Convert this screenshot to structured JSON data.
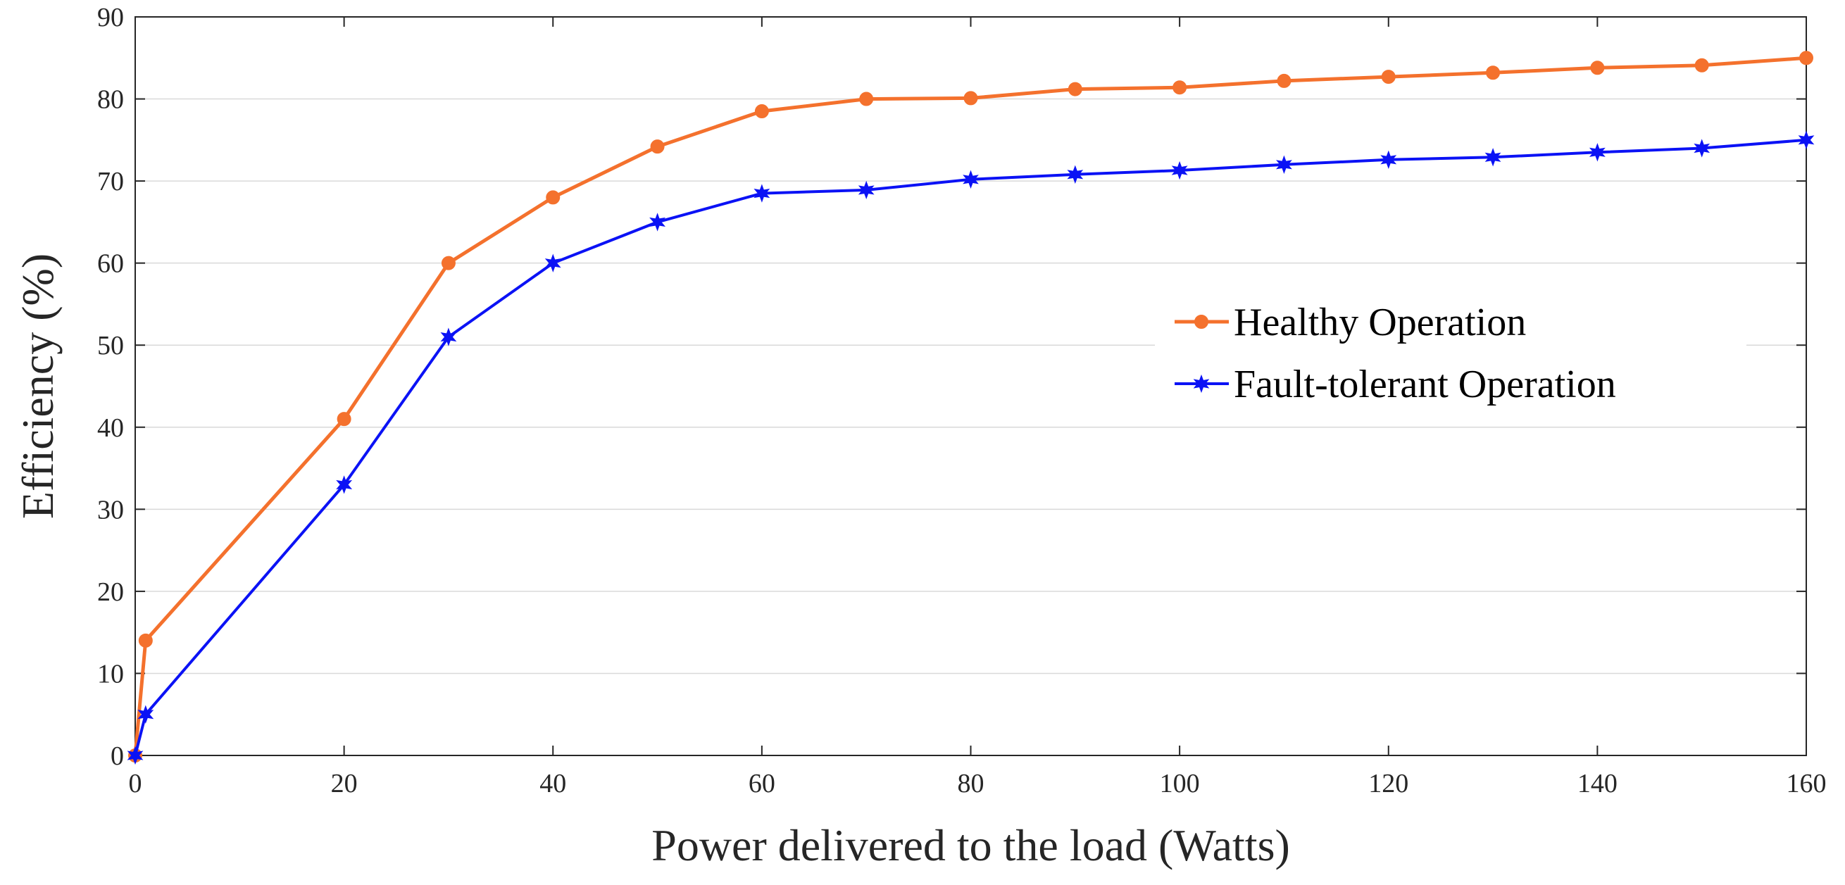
{
  "chart_data": {
    "type": "line",
    "title": "",
    "xlabel": "Power delivered to the load (Watts)",
    "ylabel": "Efficiency (%)",
    "xlim": [
      0,
      160
    ],
    "ylim": [
      0,
      90
    ],
    "xticks": [
      0,
      20,
      40,
      60,
      80,
      100,
      120,
      140,
      160
    ],
    "yticks": [
      0,
      10,
      20,
      30,
      40,
      50,
      60,
      70,
      80,
      90
    ],
    "grid": "horizontal",
    "legend_position": "center-right",
    "series": [
      {
        "name": "Healthy Operation",
        "color": "#f4712d",
        "marker": "circle",
        "x": [
          0,
          1,
          20,
          30,
          40,
          50,
          60,
          70,
          80,
          90,
          100,
          110,
          120,
          130,
          140,
          150,
          160
        ],
        "values": [
          0,
          14,
          41,
          60,
          68,
          74.2,
          78.5,
          80,
          80.1,
          81.2,
          81.4,
          82.2,
          82.7,
          83.2,
          83.8,
          84.1,
          85
        ]
      },
      {
        "name": "Fault-tolerant Operation",
        "color": "#0b12f5",
        "marker": "star",
        "x": [
          0,
          1,
          20,
          30,
          40,
          50,
          60,
          70,
          80,
          90,
          100,
          110,
          120,
          130,
          140,
          150,
          160
        ],
        "values": [
          0,
          5,
          33,
          51,
          60,
          65,
          68.5,
          68.9,
          70.2,
          70.8,
          71.3,
          72,
          72.6,
          72.9,
          73.5,
          74,
          75
        ]
      }
    ]
  }
}
